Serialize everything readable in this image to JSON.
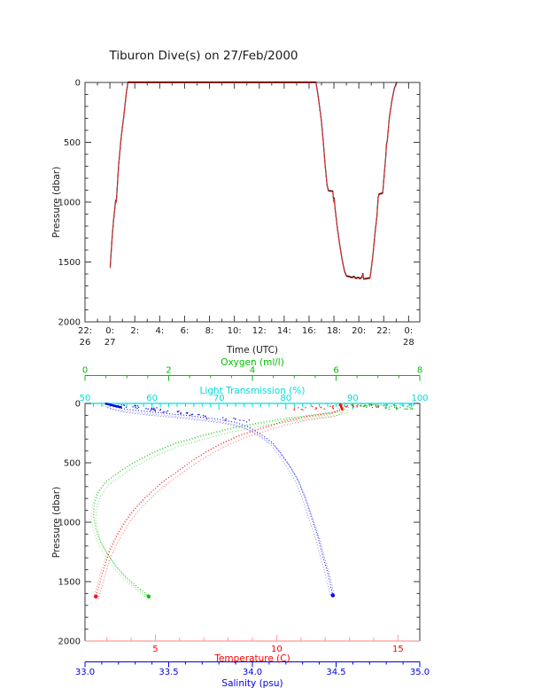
{
  "title": "Tiburon Dive(s) on 27/Feb/2000",
  "colors": {
    "frame": "#3a3a3a",
    "track_black": "#000000",
    "track_red": "#ee3333",
    "temperature": "#ff0000",
    "temperature_axis_line": "#ff9999",
    "salinity": "#0000e0",
    "oxygen": "#00c000",
    "light_transmission": "#00dcdc",
    "text": "#1a1a1a"
  },
  "chart_data": [
    {
      "id": "dive-depth-timeseries",
      "type": "line",
      "title": "Tiburon Dive(s) on 27/Feb/2000",
      "xlabel": "Time (UTC)",
      "ylabel": "Pressure (dbar)",
      "x_major_tick_labels": [
        "22:",
        "0:",
        "2:",
        "4:",
        "6:",
        "8:",
        "10:",
        "12:",
        "14:",
        "16:",
        "18:",
        "20:",
        "22:",
        "0:"
      ],
      "x_day_labels": [
        {
          "tick_index": 0,
          "label": "26"
        },
        {
          "tick_index": 1,
          "label": "27"
        },
        {
          "tick_index": 13,
          "label": "28"
        }
      ],
      "x_major_step_hours": 2,
      "x_range_hours": [
        0,
        26.9
      ],
      "y_ticks": [
        "0",
        "500",
        "1000",
        "1500",
        "2000"
      ],
      "y_tick_values": [
        0,
        500,
        1000,
        1500,
        2000
      ],
      "y_minor_step": 100,
      "ylim": [
        0,
        2000
      ],
      "y_axis_reversed": true,
      "grid": false,
      "series": [
        {
          "name": "dive-track-pressure",
          "legend": "",
          "points_time_hours_vs_dbar": [
            [
              2.02,
              1548
            ],
            [
              2.08,
              1460
            ],
            [
              2.18,
              1300
            ],
            [
              2.3,
              1150
            ],
            [
              2.42,
              1030
            ],
            [
              2.46,
              985
            ],
            [
              2.5,
              1005
            ],
            [
              2.55,
              950
            ],
            [
              2.7,
              700
            ],
            [
              2.85,
              520
            ],
            [
              2.95,
              420
            ],
            [
              3.05,
              335
            ],
            [
              3.1,
              300
            ],
            [
              3.3,
              105
            ],
            [
              3.45,
              0
            ],
            [
              18.55,
              0
            ],
            [
              18.7,
              95
            ],
            [
              18.85,
              210
            ],
            [
              19.0,
              330
            ],
            [
              19.15,
              505
            ],
            [
              19.3,
              700
            ],
            [
              19.45,
              860
            ],
            [
              19.55,
              905
            ],
            [
              19.9,
              910
            ],
            [
              19.98,
              1000
            ],
            [
              20.02,
              965
            ],
            [
              20.08,
              1045
            ],
            [
              20.25,
              1200
            ],
            [
              20.45,
              1350
            ],
            [
              20.65,
              1480
            ],
            [
              20.85,
              1580
            ],
            [
              21.0,
              1618
            ],
            [
              21.2,
              1622
            ],
            [
              21.45,
              1630
            ],
            [
              21.6,
              1622
            ],
            [
              21.75,
              1638
            ],
            [
              21.95,
              1630
            ],
            [
              22.1,
              1641
            ],
            [
              22.25,
              1628
            ],
            [
              22.32,
              1596
            ],
            [
              22.38,
              1642
            ],
            [
              22.6,
              1640
            ],
            [
              22.9,
              1634
            ],
            [
              23.0,
              1560
            ],
            [
              23.15,
              1430
            ],
            [
              23.3,
              1260
            ],
            [
              23.45,
              1120
            ],
            [
              23.55,
              965
            ],
            [
              23.62,
              935
            ],
            [
              23.92,
              925
            ],
            [
              24.05,
              760
            ],
            [
              24.15,
              640
            ],
            [
              24.22,
              520
            ],
            [
              24.28,
              498
            ],
            [
              24.45,
              300
            ],
            [
              24.65,
              160
            ],
            [
              24.85,
              55
            ],
            [
              25.05,
              0
            ]
          ]
        }
      ]
    },
    {
      "id": "ctd-profiles",
      "type": "scatter",
      "ylabel": "Pressure (dbar)",
      "y_ticks": [
        "0",
        "500",
        "1000",
        "1500",
        "2000"
      ],
      "y_tick_values": [
        0,
        500,
        1000,
        1500,
        2000
      ],
      "y_minor_step": 100,
      "ylim": [
        0,
        2000
      ],
      "y_axis_reversed": true,
      "x_axes": {
        "oxygen": {
          "label": "Oxygen (ml/l)",
          "tick_labels": [
            "0",
            "2",
            "4",
            "6",
            "8"
          ],
          "tick_values": [
            0,
            2,
            4,
            6,
            8
          ],
          "range": [
            0,
            8
          ],
          "minor_step": 0.5
        },
        "light_transmission": {
          "label": "Light Transmission (%)",
          "tick_labels": [
            "50",
            "60",
            "70",
            "80",
            "90",
            "100"
          ],
          "tick_values": [
            50,
            60,
            70,
            80,
            90,
            100
          ],
          "range": [
            50,
            100
          ],
          "minor_step": 1.25
        },
        "temperature": {
          "label": "Temperature (C)",
          "tick_labels": [
            "5",
            "10",
            "15"
          ],
          "tick_values": [
            5,
            10,
            15
          ],
          "range": [
            2.1,
            15.9
          ],
          "minor_step": 1
        },
        "salinity": {
          "label": "Salinity (psu)",
          "tick_labels": [
            "33.0",
            "33.5",
            "34.0",
            "34.5",
            "35.0"
          ],
          "tick_values": [
            33.0,
            33.5,
            34.0,
            34.5,
            35.0
          ],
          "range": [
            33.0,
            35.0
          ],
          "minor_step": 0.1
        }
      },
      "profiles": {
        "temperature": [
          [
            12.65,
            0
          ],
          [
            12.6,
            55
          ],
          [
            12.3,
            80
          ],
          [
            11.2,
            110
          ],
          [
            10.3,
            150
          ],
          [
            9.4,
            205
          ],
          [
            8.5,
            265
          ],
          [
            7.8,
            330
          ],
          [
            7.2,
            395
          ],
          [
            6.6,
            470
          ],
          [
            6.0,
            560
          ],
          [
            5.3,
            660
          ],
          [
            4.6,
            790
          ],
          [
            4.1,
            900
          ],
          [
            3.75,
            1000
          ],
          [
            3.4,
            1120
          ],
          [
            3.1,
            1250
          ],
          [
            2.9,
            1370
          ],
          [
            2.75,
            1480
          ],
          [
            2.62,
            1570
          ],
          [
            2.55,
            1625
          ]
        ],
        "oxygen": [
          [
            6.25,
            0
          ],
          [
            6.2,
            55
          ],
          [
            5.6,
            90
          ],
          [
            4.8,
            125
          ],
          [
            4.2,
            160
          ],
          [
            3.4,
            215
          ],
          [
            2.8,
            270
          ],
          [
            2.2,
            330
          ],
          [
            1.7,
            400
          ],
          [
            1.2,
            490
          ],
          [
            0.8,
            580
          ],
          [
            0.5,
            660
          ],
          [
            0.3,
            760
          ],
          [
            0.22,
            850
          ],
          [
            0.2,
            950
          ],
          [
            0.26,
            1060
          ],
          [
            0.36,
            1160
          ],
          [
            0.52,
            1260
          ],
          [
            0.72,
            1360
          ],
          [
            0.95,
            1450
          ],
          [
            1.2,
            1530
          ],
          [
            1.45,
            1600
          ],
          [
            1.52,
            1625
          ]
        ],
        "salinity": [
          [
            33.12,
            0
          ],
          [
            33.16,
            25
          ],
          [
            33.25,
            50
          ],
          [
            33.42,
            75
          ],
          [
            33.6,
            100
          ],
          [
            33.78,
            130
          ],
          [
            33.9,
            160
          ],
          [
            33.98,
            200
          ],
          [
            34.05,
            260
          ],
          [
            34.12,
            330
          ],
          [
            34.17,
            420
          ],
          [
            34.22,
            520
          ],
          [
            34.27,
            640
          ],
          [
            34.31,
            780
          ],
          [
            34.35,
            950
          ],
          [
            34.39,
            1120
          ],
          [
            34.42,
            1280
          ],
          [
            34.45,
            1430
          ],
          [
            34.47,
            1550
          ],
          [
            34.48,
            1615
          ]
        ]
      },
      "dense_segments": {
        "temperature": [
          [
            12.6,
            2
          ],
          [
            12.72,
            58
          ]
        ],
        "salinity": [
          [
            33.12,
            1
          ],
          [
            33.22,
            34
          ]
        ]
      },
      "scatter_bands": [
        {
          "series": "temperature",
          "from": [
            10.5,
            45
          ],
          "to": [
            15.6,
            4
          ],
          "count": 55,
          "jitter_value": 0.5,
          "jitter_pressure": 14
        },
        {
          "series": "oxygen",
          "from": [
            6.3,
            6
          ],
          "to": [
            7.7,
            45
          ],
          "count": 45,
          "jitter_value": 0.25,
          "jitter_pressure": 12
        },
        {
          "series": "salinity",
          "from": [
            33.15,
            4
          ],
          "to": [
            33.95,
            150
          ],
          "count": 60,
          "jitter_value": 0.06,
          "jitter_pressure": 10
        },
        {
          "series": "light_transmission",
          "from": [
            91,
            4
          ],
          "to": [
            99.5,
            18
          ],
          "count": 22,
          "jitter_value": 1.2,
          "jitter_pressure": 7
        }
      ]
    }
  ]
}
